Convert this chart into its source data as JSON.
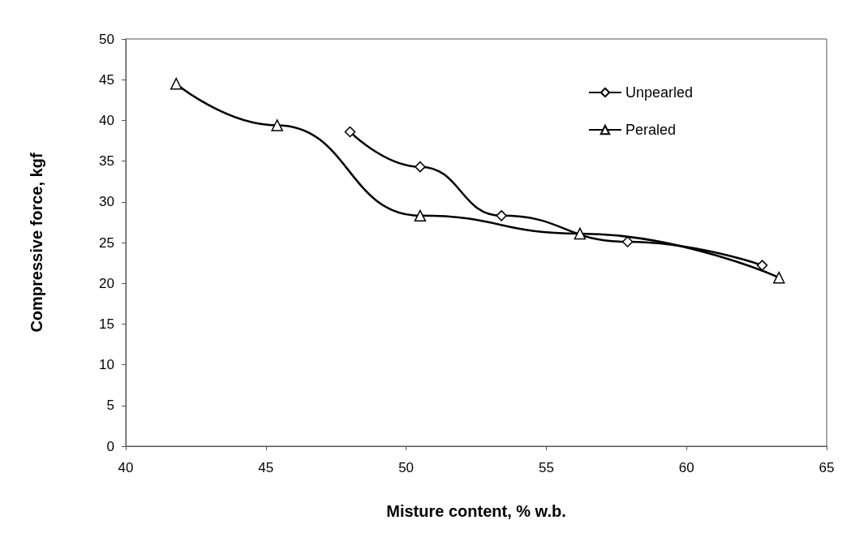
{
  "chart_data": {
    "type": "line",
    "xlabel": "Misture content, % w.b.",
    "ylabel": "Compressive force, kgf",
    "xlim": [
      40,
      65
    ],
    "xticks": [
      40,
      45,
      50,
      55,
      60,
      65
    ],
    "ylim": [
      0,
      50
    ],
    "yticks": [
      0,
      5,
      10,
      15,
      20,
      25,
      30,
      35,
      40,
      45,
      50
    ],
    "grid": false,
    "legend": "top right",
    "line_style": "solid",
    "series": [
      {
        "name": "Unpearled",
        "color": "#000000",
        "marker": "diamond",
        "x": [
          48.0,
          50.5,
          53.4,
          57.9,
          62.7
        ],
        "values": [
          38.6,
          34.3,
          28.3,
          25.1,
          22.2
        ]
      },
      {
        "name": "Peraled",
        "color": "#000000",
        "marker": "triangle",
        "x": [
          41.8,
          45.4,
          50.5,
          56.2,
          63.3
        ],
        "values": [
          44.5,
          39.4,
          28.3,
          26.1,
          20.7
        ]
      }
    ]
  }
}
